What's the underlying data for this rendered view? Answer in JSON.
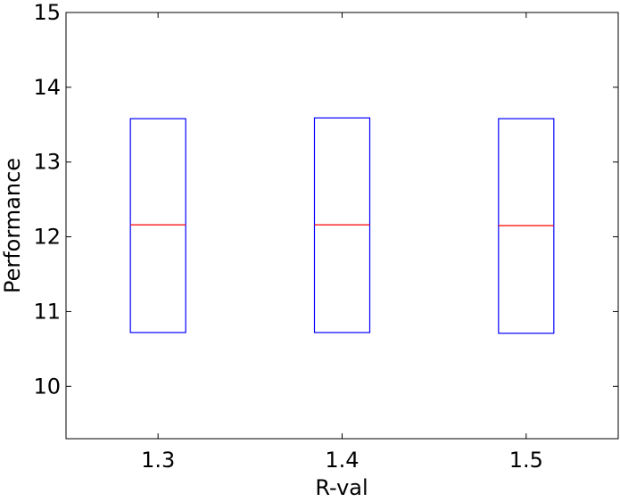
{
  "chart_data": {
    "type": "box",
    "title": "",
    "xlabel": "R-val",
    "ylabel": "Performance",
    "categories": [
      "1.3",
      "1.4",
      "1.5"
    ],
    "boxes": [
      {
        "category": "1.3",
        "q1": 10.72,
        "median": 12.16,
        "q3": 13.58
      },
      {
        "category": "1.4",
        "q1": 10.72,
        "median": 12.16,
        "q3": 13.59
      },
      {
        "category": "1.5",
        "q1": 10.71,
        "median": 12.15,
        "q3": 13.58
      }
    ],
    "ylim": [
      9.3,
      15
    ],
    "yticks": [
      "10",
      "11",
      "12",
      "13",
      "14",
      "15"
    ],
    "grid": false,
    "legend": "none",
    "colors": {
      "box": "#0000ff",
      "median": "#ff0000",
      "axes": "#000000"
    }
  }
}
